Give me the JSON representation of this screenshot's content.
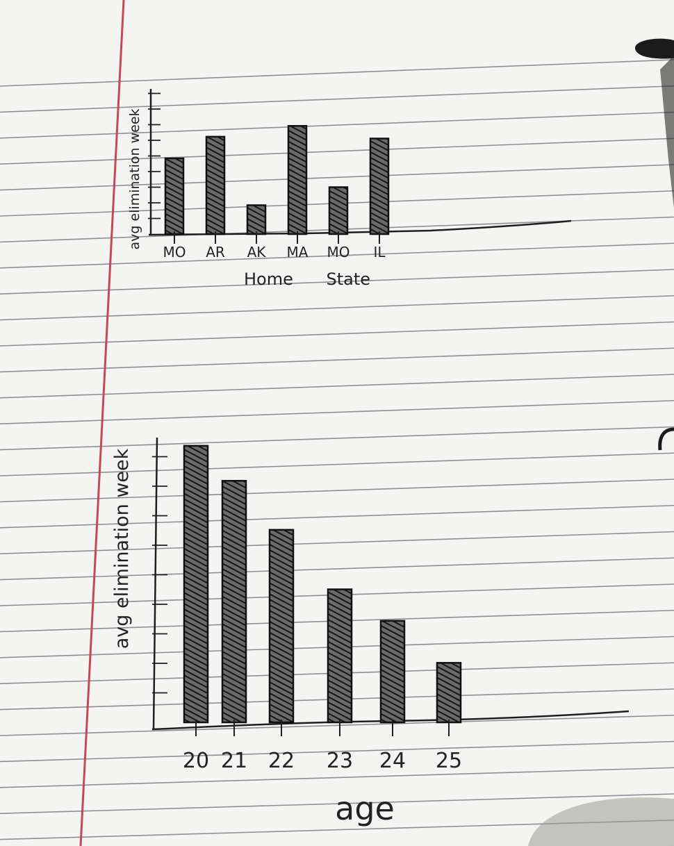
{
  "colors": {
    "paper": "#f4f4f2",
    "rule_line": "#8c8e92",
    "margin_line": "#c4485a",
    "ink": "#1e1e1e",
    "hatch": "#2a2a2a"
  },
  "chart_data": [
    {
      "type": "bar",
      "categories": [
        "MO",
        "AR",
        "AK",
        "MA",
        "MO",
        "IL"
      ],
      "values": [
        4.2,
        5.4,
        1.6,
        6.0,
        2.6,
        5.3
      ],
      "title": "",
      "xlabel": "Home State",
      "ylabel": "avg elimination week",
      "ylim": [
        0,
        10
      ],
      "grid": false,
      "bar_fill": "hatched"
    },
    {
      "type": "bar",
      "categories": [
        "20",
        "21",
        "22",
        "23",
        "24",
        "25"
      ],
      "values": [
        7.9,
        6.9,
        5.5,
        3.8,
        2.9,
        1.7
      ],
      "title": "",
      "xlabel": "age",
      "ylabel": "avg elimination week",
      "ylim": [
        0,
        10
      ],
      "grid": false,
      "bar_fill": "hatched"
    }
  ]
}
